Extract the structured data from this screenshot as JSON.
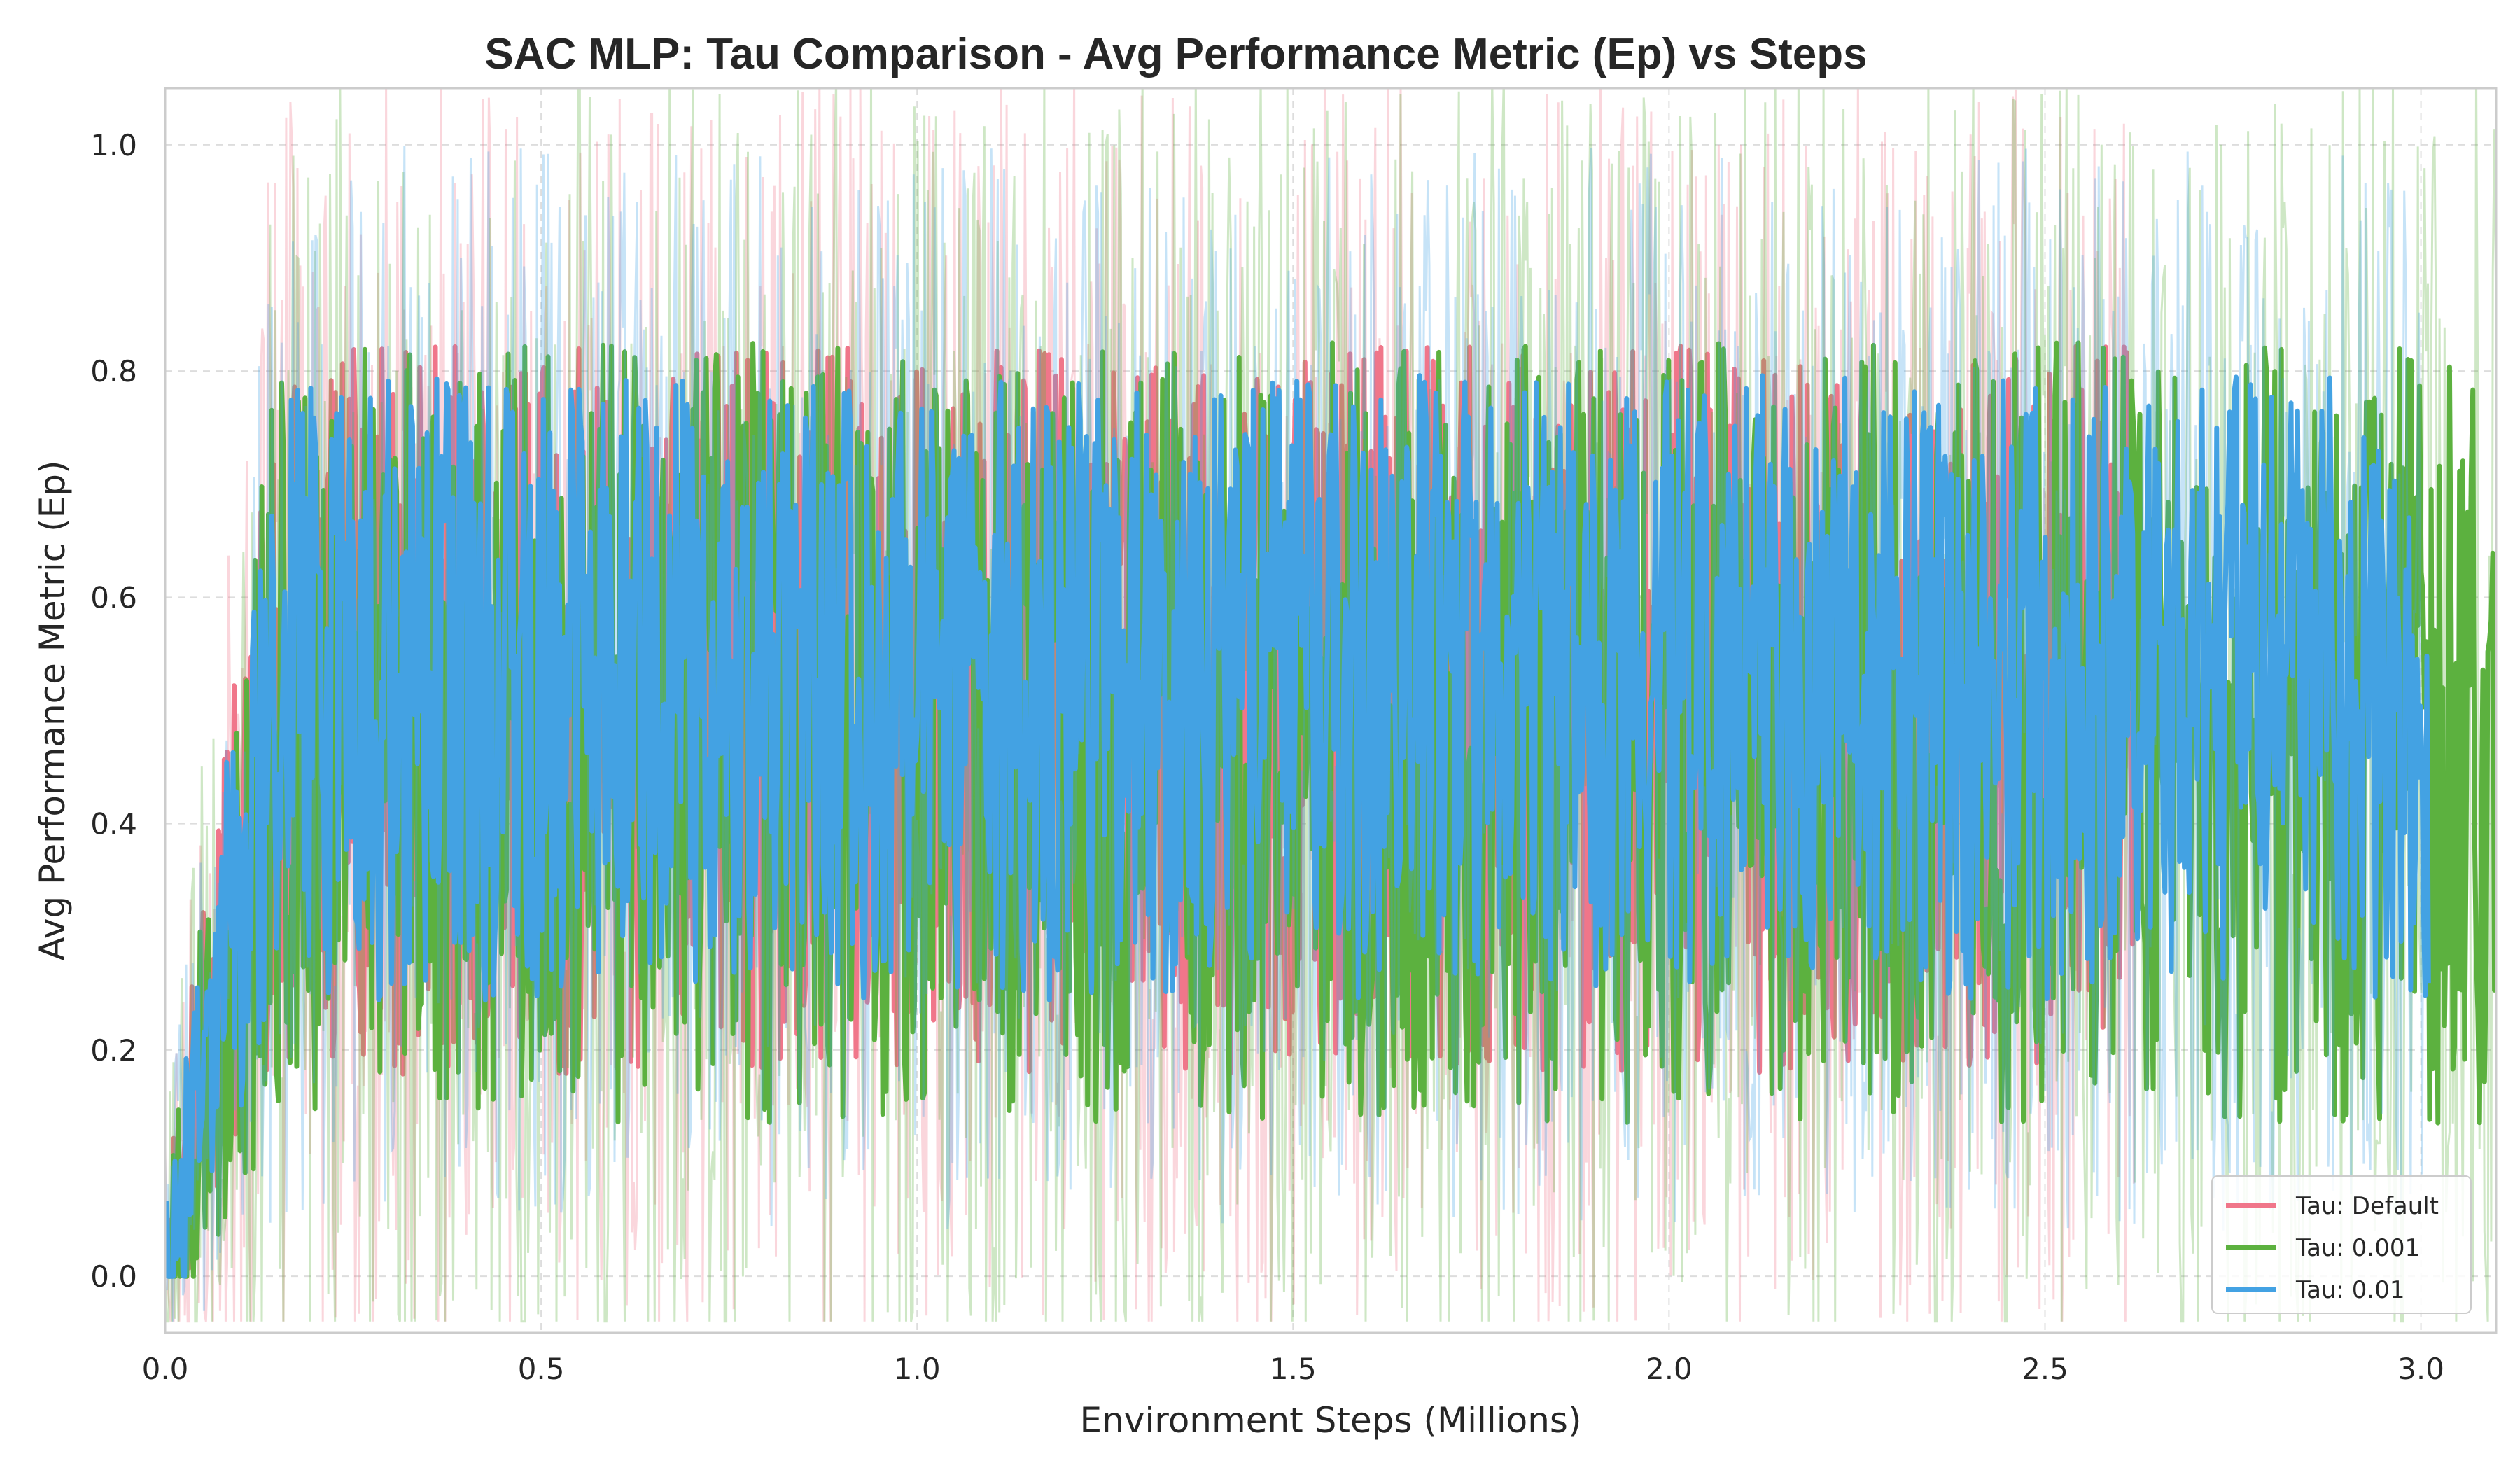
{
  "chart_data": {
    "type": "line",
    "title": "SAC MLP: Tau Comparison - Avg Performance Metric (Ep) vs Steps",
    "xlabel": "Environment Steps (Millions)",
    "ylabel": "Avg Performance Metric (Ep)",
    "xlim": [
      0.0,
      3.1
    ],
    "ylim": [
      -0.05,
      1.05
    ],
    "xticks": [
      0.0,
      0.5,
      1.0,
      1.5,
      2.0,
      2.5,
      3.0
    ],
    "xtick_labels": [
      "0.0",
      "0.5",
      "1.0",
      "1.5",
      "2.0",
      "2.5",
      "3.0"
    ],
    "yticks": [
      0.0,
      0.2,
      0.4,
      0.6,
      0.8,
      1.0
    ],
    "ytick_labels": [
      "0.0",
      "0.2",
      "0.4",
      "0.6",
      "0.8",
      "1.0"
    ],
    "grid": true,
    "legend_position": "lower-right",
    "series": [
      {
        "name": "Tau: Default",
        "color": "#f0768a",
        "x_end": 2.62,
        "y_start": 0.0,
        "ramp_end": 0.15,
        "mean": 0.5,
        "spread": 0.28
      },
      {
        "name": "Tau: 0.001",
        "color": "#5cb13f",
        "x_end": 3.1,
        "y_start": 0.0,
        "ramp_end": 0.15,
        "mean": 0.48,
        "spread": 0.3
      },
      {
        "name": "Tau: 0.01",
        "color": "#43a2e3",
        "x_end": 3.01,
        "y_start": 0.0,
        "ramp_end": 0.15,
        "mean": 0.52,
        "spread": 0.24
      }
    ]
  }
}
